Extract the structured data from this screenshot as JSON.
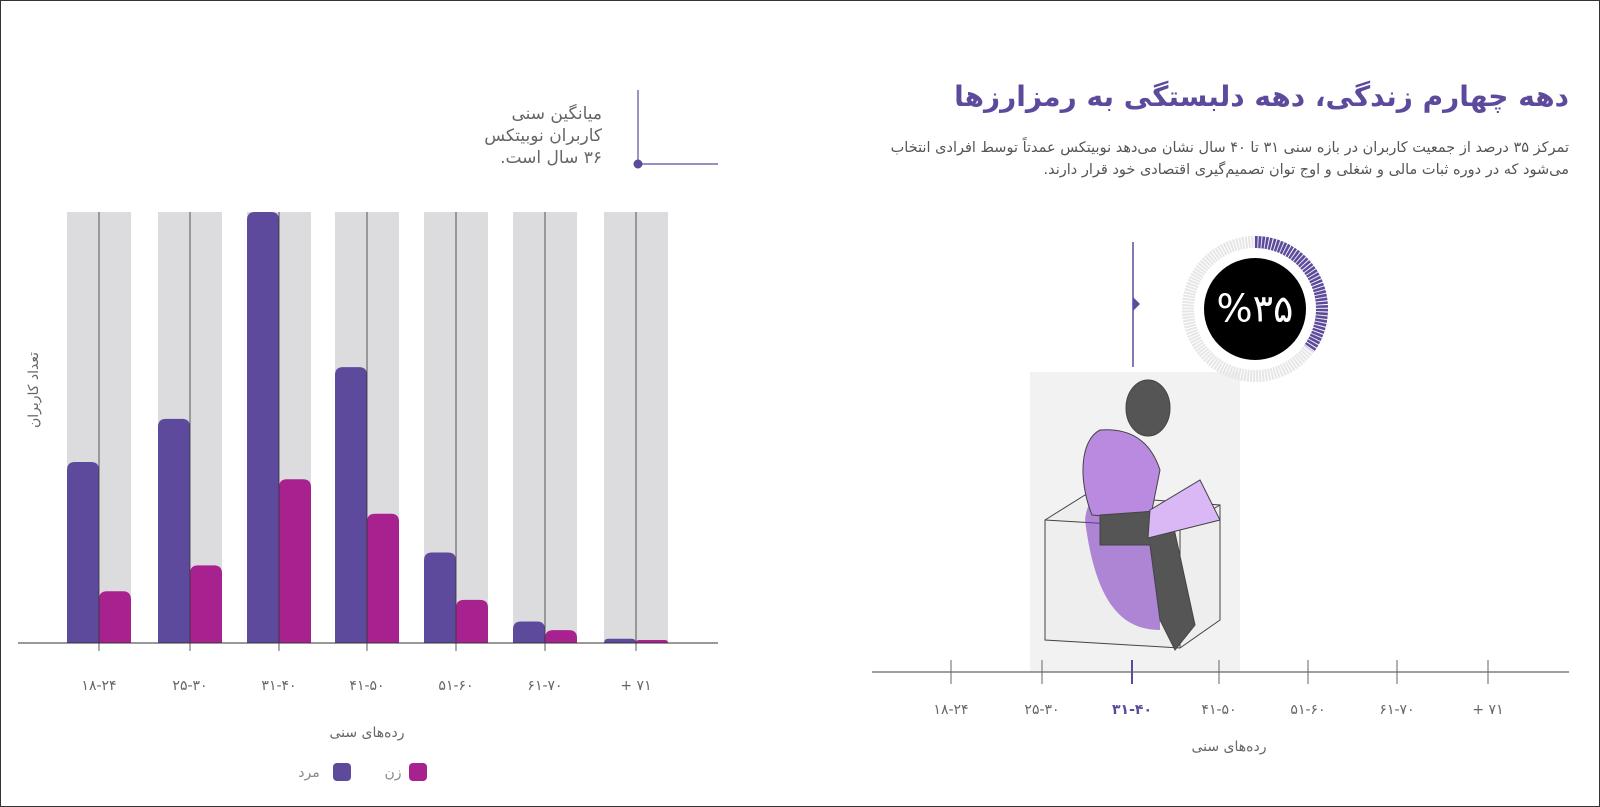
{
  "header": {
    "title": "دهه چهارم زندگی، دهه دلبستگی به رمزارزها",
    "description": [
      "تمرکز ۳۵ درصد از جمعیت کاربران در بازه سنی ۳۱ تا ۴۰ سال نشان می‌دهد نوبیتکس عمدتاً توسط افرادی انتخاب",
      "می‌شود که در دوره ثبات مالی و شغلی و اوج توان تصمیم‌گیری اقتصادی خود قرار دارند."
    ]
  },
  "annotation": [
    "میانگین سنی",
    "کاربران نوبیتکس",
    "۳۶ سال است."
  ],
  "chart_data": [
    {
      "type": "bar",
      "y_label": "تعداد کاربران",
      "x_label": "رده‌های سنی",
      "categories": [
        "۱۸-۲۴",
        "۲۵-۳۰",
        "۳۱-۴۰",
        "۴۱-۵۰",
        "۵۱-۶۰",
        "۶۱-۷۰",
        "+ ۷۱"
      ],
      "series": [
        {
          "name": "مرد",
          "color": "#5e4a9c",
          "values": [
            42,
            52,
            100,
            64,
            21,
            5,
            1
          ]
        },
        {
          "name": "زن",
          "color": "#a8228f",
          "values": [
            12,
            18,
            38,
            30,
            10,
            3,
            0.7
          ]
        }
      ],
      "ylim": [
        0,
        100
      ]
    },
    {
      "type": "donut",
      "values": [
        35
      ],
      "value_labels": [
        "%۳۵"
      ],
      "color": "#5e4a9c",
      "axis_categories": [
        "۱۸-۲۴",
        "۲۵-۳۰",
        "۳۱-۴۰",
        "۴۱-۵۰",
        "۵۱-۶۰",
        "۶۱-۷۰",
        "+ ۷۱"
      ],
      "highlight": "۳۱-۴۰",
      "x_label": "رده‌های سنی"
    }
  ]
}
